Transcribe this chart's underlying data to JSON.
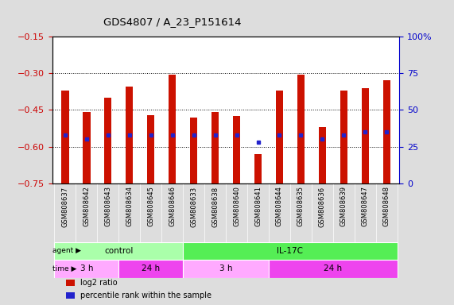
{
  "title": "GDS4807 / A_23_P151614",
  "samples": [
    "GSM808637",
    "GSM808642",
    "GSM808643",
    "GSM808634",
    "GSM808645",
    "GSM808646",
    "GSM808633",
    "GSM808638",
    "GSM808640",
    "GSM808641",
    "GSM808644",
    "GSM808635",
    "GSM808636",
    "GSM808639",
    "GSM808647",
    "GSM808648"
  ],
  "log2_ratio": [
    -0.37,
    -0.46,
    -0.4,
    -0.355,
    -0.47,
    -0.305,
    -0.48,
    -0.46,
    -0.475,
    -0.63,
    -0.37,
    -0.305,
    -0.52,
    -0.37,
    -0.36,
    -0.33
  ],
  "percentile": [
    33,
    30,
    33,
    33,
    33,
    33,
    33,
    33,
    33,
    28,
    33,
    33,
    30,
    33,
    35,
    35
  ],
  "ylim_left": [
    -0.75,
    -0.15
  ],
  "ylim_right": [
    0,
    100
  ],
  "yticks_left": [
    -0.75,
    -0.6,
    -0.45,
    -0.3,
    -0.15
  ],
  "yticks_right": [
    0,
    25,
    50,
    75,
    100
  ],
  "bar_color": "#cc1100",
  "dot_color": "#2222cc",
  "agent_groups": [
    {
      "label": "control",
      "start": 0,
      "end": 6,
      "color": "#aaffaa"
    },
    {
      "label": "IL-17C",
      "start": 6,
      "end": 16,
      "color": "#55ee55"
    }
  ],
  "time_groups": [
    {
      "label": "3 h",
      "start": 0,
      "end": 3,
      "color": "#ffaaff"
    },
    {
      "label": "24 h",
      "start": 3,
      "end": 6,
      "color": "#ee44ee"
    },
    {
      "label": "3 h",
      "start": 6,
      "end": 10,
      "color": "#ffaaff"
    },
    {
      "label": "24 h",
      "start": 10,
      "end": 16,
      "color": "#ee44ee"
    }
  ],
  "legend_items": [
    {
      "color": "#cc1100",
      "label": "log2 ratio"
    },
    {
      "color": "#2222cc",
      "label": "percentile rank within the sample"
    }
  ],
  "bg_color": "#dddddd",
  "plot_bg": "#ffffff"
}
